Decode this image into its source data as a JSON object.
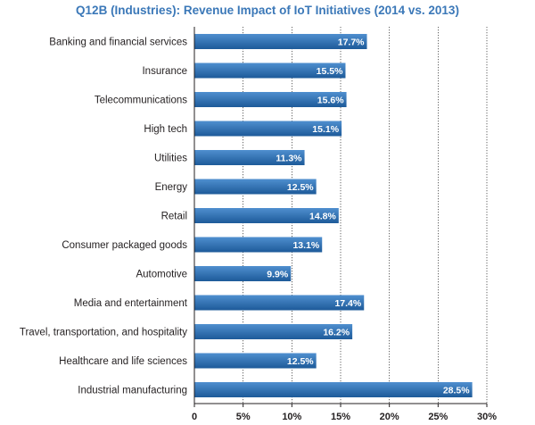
{
  "chart_data": {
    "type": "bar",
    "orientation": "horizontal",
    "title": "Q12B (Industries): Revenue Impact of IoT Initiatives (2014 vs. 2013)",
    "categories": [
      "Banking and financial services",
      "Insurance",
      "Telecommunications",
      "High tech",
      "Utilities",
      "Energy",
      "Retail",
      "Consumer packaged goods",
      "Automotive",
      "Media and entertainment",
      "Travel, transportation, and hospitality",
      "Healthcare and life sciences",
      "Industrial manufacturing"
    ],
    "values": [
      17.7,
      15.5,
      15.6,
      15.1,
      11.3,
      12.5,
      14.8,
      13.1,
      9.9,
      17.4,
      16.2,
      12.5,
      28.5
    ],
    "value_labels": [
      "17.7%",
      "15.5%",
      "15.6%",
      "15.1%",
      "11.3%",
      "12.5%",
      "14.8%",
      "13.1%",
      "9.9%",
      "17.4%",
      "16.2%",
      "12.5%",
      "28.5%"
    ],
    "xlim": [
      0,
      30
    ],
    "xticks": [
      0,
      5,
      10,
      15,
      20,
      25,
      30
    ],
    "xtick_labels": [
      "0",
      "5%",
      "10%",
      "15%",
      "20%",
      "25%",
      "30%"
    ],
    "xlabel": "",
    "ylabel": "",
    "grid": true,
    "colors": {
      "bar_light": "#4f8fcf",
      "bar_dark": "#1d5a99",
      "title": "#3b78b8",
      "grid": "#000000",
      "text": "#231f20"
    }
  }
}
